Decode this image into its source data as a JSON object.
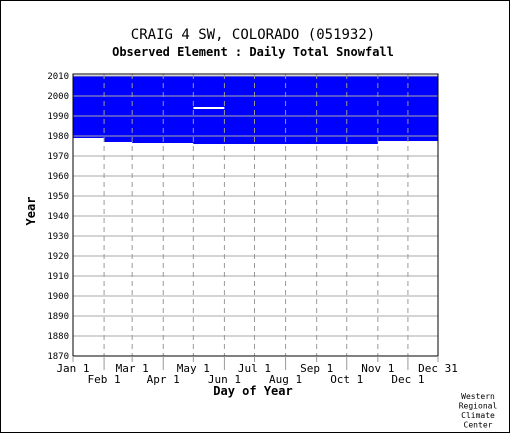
{
  "chart_data": {
    "type": "heatmap",
    "title": "CRAIG 4 SW, COLORADO   (051932)",
    "subtitle": "Observed Element : Daily Total Snowfall",
    "xlabel": "Day of Year",
    "ylabel": "Year",
    "x_ticks_top": [
      "Jan 1",
      "Mar 1",
      "May 1",
      "Jul 1",
      "Sep 1",
      "Nov 1",
      "Dec 31"
    ],
    "x_ticks_bottom": [
      "Feb 1",
      "Apr 1",
      "Jun 1",
      "Aug 1",
      "Oct 1",
      "Dec 1"
    ],
    "x_tick_days_top": [
      1,
      60,
      121,
      182,
      244,
      305,
      365
    ],
    "x_tick_days_bottom": [
      32,
      91,
      152,
      213,
      274,
      335
    ],
    "y_ticks": [
      1870,
      1880,
      1890,
      1900,
      1910,
      1920,
      1930,
      1940,
      1950,
      1960,
      1970,
      1980,
      1990,
      2000,
      2010
    ],
    "xlim": [
      1,
      365
    ],
    "ylim": [
      1870,
      2011
    ],
    "grid": true,
    "data_color": "#0000ff",
    "data_blocks": [
      {
        "day_start": 1,
        "day_end": 365,
        "year_start": 1979,
        "year_end": 2010
      },
      {
        "day_start": 32,
        "day_end": 365,
        "year_start": 1977,
        "year_end": 1979
      },
      {
        "day_start": 60,
        "day_end": 365,
        "year_start": 1976.5,
        "year_end": 1977
      },
      {
        "day_start": 121,
        "day_end": 305,
        "year_start": 1976,
        "year_end": 1976.5
      }
    ],
    "data_gaps": [
      {
        "day_start": 1,
        "day_end": 32,
        "year": 1978
      },
      {
        "day_start": 121,
        "day_end": 152,
        "year": 1994
      },
      {
        "day_start": 305,
        "day_end": 365,
        "year": 1977
      }
    ],
    "credit": [
      "Western",
      "Regional",
      "Climate",
      "Center"
    ]
  }
}
